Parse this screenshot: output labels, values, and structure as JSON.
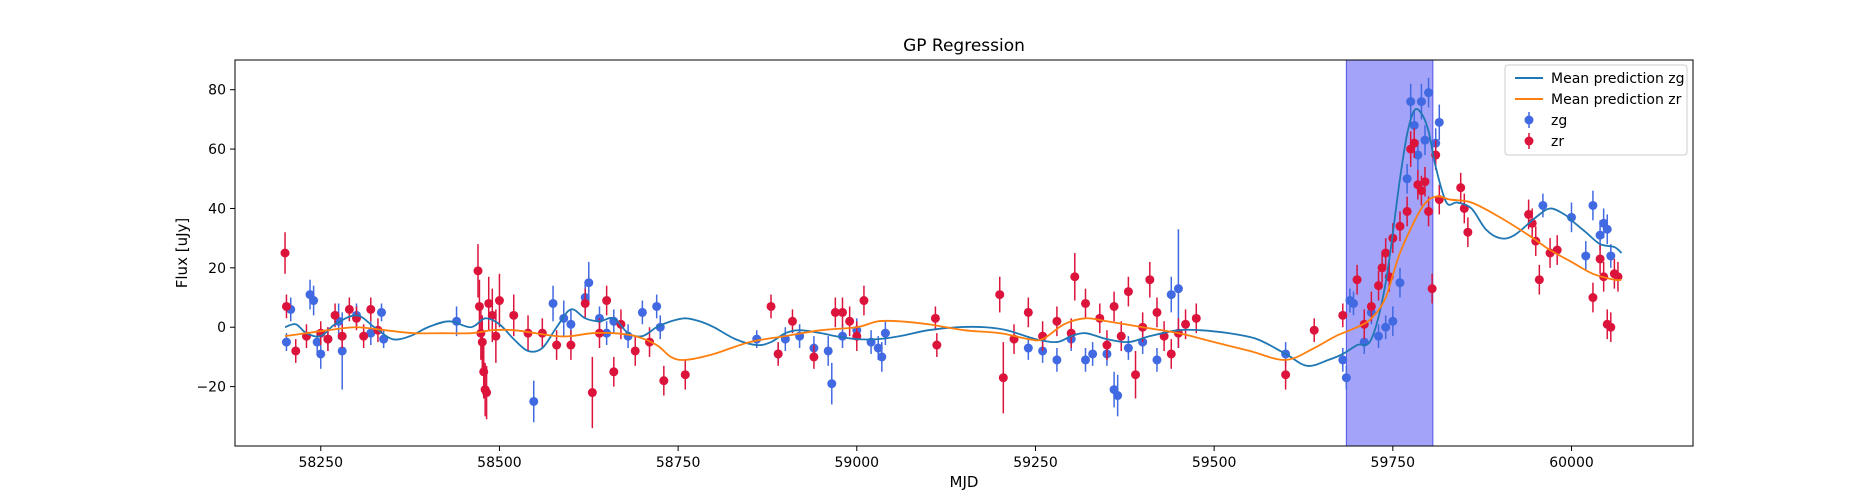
{
  "chart_data": {
    "type": "scatter",
    "title": "GP Regression",
    "xlabel": "MJD",
    "ylabel": "Flux [uJy]",
    "xlim": [
      58130,
      60170
    ],
    "ylim": [
      -40,
      90
    ],
    "x_ticks": [
      58250,
      58500,
      58750,
      59000,
      59250,
      59500,
      59750,
      60000
    ],
    "y_ticks": [
      -20,
      0,
      20,
      40,
      60,
      80
    ],
    "grid": false,
    "legend_position": "top-right",
    "highlight_span": {
      "x_start": 59685,
      "x_end": 59806,
      "color": "#a3a3f9"
    },
    "colors": {
      "zg": "#4169e1",
      "zr": "#dc143c",
      "mean_zg": "#1f77b4",
      "mean_zr": "#ff7f0e"
    },
    "series": [
      {
        "name": "Mean prediction zg",
        "kind": "line",
        "color": "#1f77b4",
        "x": [
          58200,
          58215,
          58230,
          58250,
          58270,
          58300,
          58325,
          58350,
          58375,
          58400,
          58430,
          58460,
          58480,
          58500,
          58520,
          58540,
          58560,
          58580,
          58600,
          58620,
          58640,
          58660,
          58680,
          58700,
          58720,
          58740,
          58760,
          58780,
          58800,
          58830,
          58860,
          58880,
          58900,
          58920,
          58950,
          58970,
          59000,
          59030,
          59060,
          59100,
          59140,
          59180,
          59210,
          59250,
          59280,
          59300,
          59320,
          59350,
          59380,
          59410,
          59450,
          59480,
          59520,
          59560,
          59600,
          59630,
          59660,
          59680,
          59700,
          59720,
          59740,
          59760,
          59770,
          59780,
          59790,
          59800,
          59810,
          59825,
          59840,
          59860,
          59880,
          59900,
          59920,
          59950,
          59970,
          59990,
          60000,
          60020,
          60040,
          60060,
          60070
        ],
        "y": [
          0,
          1,
          -2,
          -3,
          1,
          4,
          0,
          -4,
          -3,
          0,
          2,
          0,
          3,
          1,
          -4,
          -8,
          -7,
          0,
          6,
          3,
          2,
          3,
          -2,
          -3,
          0,
          2,
          3,
          2,
          0,
          -4,
          -6,
          -5,
          -2,
          -1,
          -2,
          -3,
          -4,
          -4,
          -3,
          -1,
          0,
          0,
          -1,
          -4,
          -5,
          -3,
          -2,
          -4,
          -5,
          -3,
          -1,
          -1,
          -2,
          -4,
          -9,
          -13,
          -11,
          -9,
          -6,
          -4,
          15,
          50,
          65,
          73,
          72,
          66,
          54,
          42,
          42,
          40,
          33,
          30,
          31,
          37,
          40,
          38,
          36,
          32,
          28,
          27,
          25
        ]
      },
      {
        "name": "Mean prediction zr",
        "kind": "line",
        "color": "#ff7f0e",
        "x": [
          58200,
          58230,
          58260,
          58300,
          58340,
          58380,
          58420,
          58460,
          58490,
          58520,
          58550,
          58580,
          58600,
          58630,
          58660,
          58690,
          58720,
          58740,
          58760,
          58800,
          58850,
          58900,
          58950,
          59000,
          59030,
          59060,
          59100,
          59150,
          59200,
          59240,
          59260,
          59290,
          59320,
          59350,
          59400,
          59450,
          59500,
          59550,
          59600,
          59640,
          59670,
          59700,
          59720,
          59740,
          59760,
          59790,
          59810,
          59830,
          59860,
          59900,
          59940,
          59970,
          60000,
          60030,
          60060,
          60070
        ],
        "y": [
          -3,
          -2,
          -1,
          0,
          -1,
          -2,
          -2,
          -2,
          -1,
          -1,
          -2,
          -3,
          -3,
          -2,
          -2,
          -3,
          -6,
          -10,
          -11,
          -9,
          -5,
          -3,
          -1,
          0,
          2,
          2,
          1,
          -1,
          -2,
          -4,
          -4,
          1,
          3,
          2,
          0,
          -2,
          -5,
          -8,
          -11,
          -7,
          -3,
          0,
          3,
          10,
          25,
          40,
          44,
          43,
          42,
          37,
          31,
          26,
          22,
          18,
          16,
          16
        ]
      },
      {
        "name": "zg",
        "kind": "errorbar",
        "color": "#4169e1",
        "points": [
          [
            58202,
            -5,
            3
          ],
          [
            58208,
            6,
            4
          ],
          [
            58235,
            11,
            5
          ],
          [
            58240,
            9,
            5
          ],
          [
            58245,
            -5,
            4
          ],
          [
            58250,
            -9,
            5
          ],
          [
            58260,
            -4,
            4
          ],
          [
            58275,
            2,
            6
          ],
          [
            58280,
            -8,
            13
          ],
          [
            58300,
            4,
            4
          ],
          [
            58320,
            -2,
            4
          ],
          [
            58335,
            5,
            3
          ],
          [
            58338,
            -4,
            3
          ],
          [
            58440,
            2,
            5
          ],
          [
            58548,
            -25,
            7
          ],
          [
            58575,
            8,
            6
          ],
          [
            58590,
            3,
            6
          ],
          [
            58600,
            1,
            5
          ],
          [
            58620,
            10,
            5
          ],
          [
            58625,
            15,
            7
          ],
          [
            58640,
            3,
            4
          ],
          [
            58650,
            -2,
            4
          ],
          [
            58660,
            2,
            4
          ],
          [
            58680,
            -3,
            4
          ],
          [
            58700,
            5,
            4
          ],
          [
            58720,
            7,
            4
          ],
          [
            58725,
            0,
            4
          ],
          [
            58860,
            -4,
            3
          ],
          [
            58890,
            -9,
            3
          ],
          [
            58900,
            -4,
            4
          ],
          [
            58920,
            -3,
            4
          ],
          [
            58940,
            -7,
            4
          ],
          [
            58960,
            -8,
            5
          ],
          [
            58965,
            -19,
            7
          ],
          [
            58980,
            -3,
            4
          ],
          [
            59000,
            -1,
            4
          ],
          [
            59020,
            -5,
            4
          ],
          [
            59030,
            -7,
            4
          ],
          [
            59035,
            -10,
            5
          ],
          [
            59040,
            -2,
            4
          ],
          [
            59240,
            -7,
            4
          ],
          [
            59260,
            -8,
            4
          ],
          [
            59280,
            -11,
            4
          ],
          [
            59300,
            -4,
            4
          ],
          [
            59320,
            -11,
            4
          ],
          [
            59330,
            -9,
            4
          ],
          [
            59350,
            -9,
            4
          ],
          [
            59360,
            -21,
            6
          ],
          [
            59365,
            -23,
            7
          ],
          [
            59380,
            -7,
            4
          ],
          [
            59400,
            -5,
            4
          ],
          [
            59420,
            -11,
            4
          ],
          [
            59440,
            11,
            6
          ],
          [
            59450,
            13,
            20
          ],
          [
            59600,
            -9,
            4
          ],
          [
            59680,
            -11,
            4
          ],
          [
            59685,
            -17,
            4
          ],
          [
            59690,
            9,
            4
          ],
          [
            59695,
            8,
            4
          ],
          [
            59710,
            -5,
            4
          ],
          [
            59720,
            5,
            4
          ],
          [
            59730,
            -3,
            4
          ],
          [
            59740,
            0,
            4
          ],
          [
            59750,
            2,
            5
          ],
          [
            59760,
            15,
            5
          ],
          [
            59770,
            50,
            5
          ],
          [
            59775,
            76,
            6
          ],
          [
            59780,
            68,
            5
          ],
          [
            59785,
            58,
            5
          ],
          [
            59790,
            76,
            6
          ],
          [
            59795,
            63,
            5
          ],
          [
            59800,
            79,
            5
          ],
          [
            59810,
            62,
            5
          ],
          [
            59815,
            69,
            6
          ],
          [
            59960,
            41,
            4
          ],
          [
            60000,
            37,
            5
          ],
          [
            60020,
            24,
            5
          ],
          [
            60030,
            41,
            5
          ],
          [
            60040,
            31,
            5
          ],
          [
            60045,
            35,
            5
          ],
          [
            60050,
            33,
            5
          ],
          [
            60055,
            24,
            4
          ]
        ]
      },
      {
        "name": "zr",
        "kind": "errorbar",
        "color": "#dc143c",
        "points": [
          [
            58200,
            25,
            7
          ],
          [
            58202,
            7,
            4
          ],
          [
            58215,
            -8,
            4
          ],
          [
            58230,
            -3,
            4
          ],
          [
            58250,
            -2,
            4
          ],
          [
            58260,
            -4,
            4
          ],
          [
            58270,
            4,
            4
          ],
          [
            58280,
            -3,
            4
          ],
          [
            58290,
            6,
            4
          ],
          [
            58300,
            3,
            4
          ],
          [
            58310,
            -3,
            4
          ],
          [
            58320,
            6,
            4
          ],
          [
            58330,
            -1,
            4
          ],
          [
            58470,
            19,
            9
          ],
          [
            58472,
            7,
            9
          ],
          [
            58474,
            -2,
            9
          ],
          [
            58476,
            -5,
            9
          ],
          [
            58478,
            -15,
            9
          ],
          [
            58480,
            -21,
            9
          ],
          [
            58482,
            -22,
            9
          ],
          [
            58485,
            8,
            9
          ],
          [
            58490,
            4,
            9
          ],
          [
            58495,
            -3,
            9
          ],
          [
            58500,
            9,
            9
          ],
          [
            58520,
            4,
            7
          ],
          [
            58540,
            -2,
            6
          ],
          [
            58560,
            -2,
            5
          ],
          [
            58580,
            -6,
            5
          ],
          [
            58600,
            -6,
            5
          ],
          [
            58620,
            8,
            5
          ],
          [
            58630,
            -22,
            12
          ],
          [
            58640,
            -2,
            5
          ],
          [
            58650,
            9,
            5
          ],
          [
            58660,
            -15,
            5
          ],
          [
            58670,
            1,
            5
          ],
          [
            58690,
            -8,
            5
          ],
          [
            58710,
            -5,
            5
          ],
          [
            58730,
            -18,
            5
          ],
          [
            58760,
            -16,
            5
          ],
          [
            58880,
            7,
            4
          ],
          [
            58890,
            -9,
            4
          ],
          [
            58910,
            2,
            4
          ],
          [
            58940,
            -10,
            4
          ],
          [
            58970,
            5,
            5
          ],
          [
            58980,
            5,
            5
          ],
          [
            58990,
            2,
            5
          ],
          [
            59000,
            -3,
            5
          ],
          [
            59010,
            9,
            5
          ],
          [
            59110,
            3,
            4
          ],
          [
            59112,
            -6,
            4
          ],
          [
            59200,
            11,
            6
          ],
          [
            59205,
            -17,
            12
          ],
          [
            59220,
            -4,
            5
          ],
          [
            59240,
            5,
            5
          ],
          [
            59260,
            -3,
            5
          ],
          [
            59280,
            2,
            5
          ],
          [
            59300,
            -2,
            5
          ],
          [
            59305,
            17,
            8
          ],
          [
            59320,
            8,
            5
          ],
          [
            59340,
            3,
            5
          ],
          [
            59350,
            -6,
            5
          ],
          [
            59360,
            7,
            5
          ],
          [
            59370,
            -3,
            5
          ],
          [
            59380,
            12,
            5
          ],
          [
            59390,
            -16,
            8
          ],
          [
            59400,
            0,
            5
          ],
          [
            59410,
            16,
            6
          ],
          [
            59420,
            5,
            5
          ],
          [
            59430,
            -3,
            5
          ],
          [
            59440,
            -9,
            5
          ],
          [
            59450,
            -2,
            5
          ],
          [
            59460,
            1,
            5
          ],
          [
            59475,
            3,
            5
          ],
          [
            59600,
            -16,
            5
          ],
          [
            59640,
            -1,
            4
          ],
          [
            59680,
            4,
            4
          ],
          [
            59700,
            16,
            5
          ],
          [
            59710,
            1,
            5
          ],
          [
            59720,
            7,
            5
          ],
          [
            59730,
            14,
            5
          ],
          [
            59735,
            20,
            5
          ],
          [
            59740,
            25,
            5
          ],
          [
            59745,
            17,
            5
          ],
          [
            59750,
            30,
            5
          ],
          [
            59760,
            34,
            5
          ],
          [
            59770,
            39,
            5
          ],
          [
            59775,
            60,
            6
          ],
          [
            59780,
            62,
            5
          ],
          [
            59785,
            48,
            5
          ],
          [
            59790,
            46,
            5
          ],
          [
            59795,
            49,
            5
          ],
          [
            59800,
            39,
            5
          ],
          [
            59805,
            13,
            5
          ],
          [
            59810,
            58,
            5
          ],
          [
            59815,
            43,
            5
          ],
          [
            59845,
            47,
            5
          ],
          [
            59850,
            40,
            5
          ],
          [
            59855,
            32,
            5
          ],
          [
            59940,
            38,
            5
          ],
          [
            59945,
            35,
            5
          ],
          [
            59950,
            29,
            5
          ],
          [
            59955,
            16,
            5
          ],
          [
            59970,
            25,
            5
          ],
          [
            59980,
            26,
            5
          ],
          [
            60030,
            10,
            5
          ],
          [
            60040,
            23,
            5
          ],
          [
            60045,
            17,
            5
          ],
          [
            60050,
            1,
            5
          ],
          [
            60055,
            0,
            5
          ],
          [
            60060,
            18,
            5
          ],
          [
            60065,
            17,
            5
          ]
        ]
      }
    ]
  }
}
